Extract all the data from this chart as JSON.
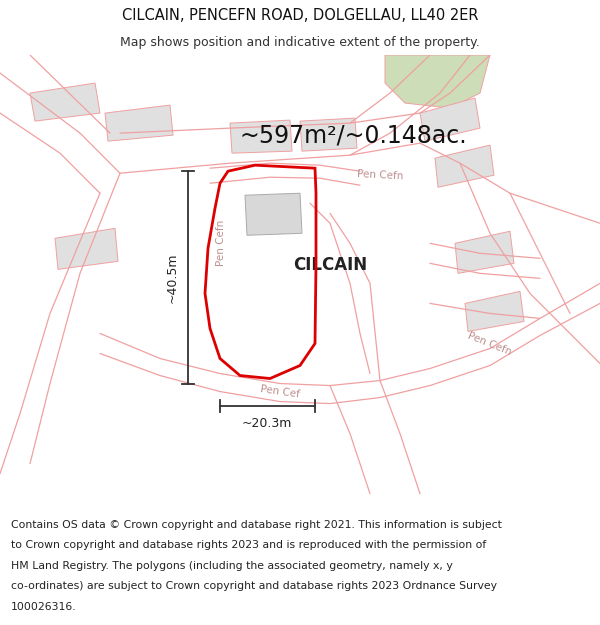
{
  "title": "CILCAIN, PENCEFN ROAD, DOLGELLAU, LL40 2ER",
  "subtitle": "Map shows position and indicative extent of the property.",
  "area_text": "~597m²/~0.148ac.",
  "property_label": "CILCAIN",
  "dim_width": "~20.3m",
  "dim_height": "~40.5m",
  "footer_lines": [
    "Contains OS data © Crown copyright and database right 2021. This information is subject",
    "to Crown copyright and database rights 2023 and is reproduced with the permission of",
    "HM Land Registry. The polygons (including the associated geometry, namely x, y",
    "co-ordinates) are subject to Crown copyright and database rights 2023 Ordnance Survey",
    "100026316."
  ],
  "bg_color": "#ffffff",
  "road_color": "#f0a0a0",
  "property_outline_color": "#dd0000",
  "building_color": "#e0e0e0",
  "green_area_color": "#ccddb8",
  "dim_line_color": "#333333",
  "title_fontsize": 10.5,
  "subtitle_fontsize": 9,
  "area_fontsize": 17,
  "label_fontsize": 12,
  "road_label_fontsize": 7.5,
  "footer_fontsize": 7.8
}
